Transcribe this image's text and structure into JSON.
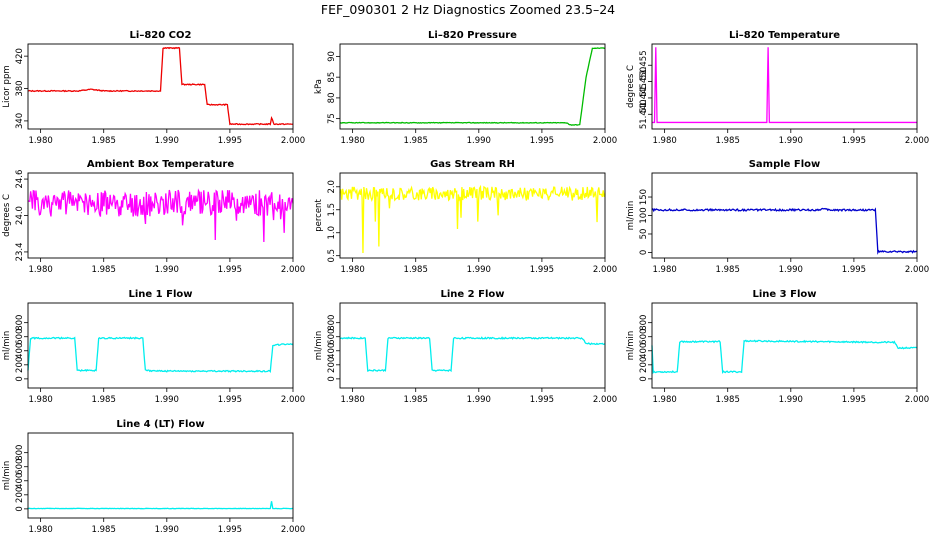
{
  "title": "FEF_090301  2 Hz Diagnostics Zoomed 23.5–24",
  "colors": {
    "red": "#ee0000",
    "green": "#00bb00",
    "magenta": "#ff00ff",
    "yellow": "#ffff00",
    "blue": "#0000cc",
    "cyan": "#00eeee"
  },
  "chart_data": [
    {
      "type": "line",
      "title": "Li–820 CO2",
      "ylabel": "Licor ppm",
      "color": "red",
      "noise": 0.6,
      "xlim": [
        1.979,
        2.0
      ],
      "xticks": [
        1.98,
        1.985,
        1.99,
        1.995,
        2.0
      ],
      "xticklabels": [
        "1.980",
        "1.985",
        "1.990",
        "1.995",
        "2.000"
      ],
      "ylim": [
        330,
        435
      ],
      "yticks": [
        340,
        380,
        420
      ],
      "yticklabels": [
        "340",
        "380",
        "420"
      ],
      "x": [
        1.979,
        1.983,
        1.984,
        1.985,
        1.9895,
        1.9897,
        1.991,
        1.9912,
        1.993,
        1.9932,
        1.9948,
        1.995,
        1.9982,
        1.9983,
        1.9985,
        2.0
      ],
      "y": [
        377,
        377,
        379,
        377,
        377,
        430,
        430,
        385,
        385,
        360,
        360,
        336,
        336,
        344,
        336,
        336
      ]
    },
    {
      "type": "line",
      "title": "Li–820 Pressure",
      "ylabel": "kPa",
      "color": "green",
      "noise": 0.08,
      "xlim": [
        1.979,
        2.0
      ],
      "xticks": [
        1.98,
        1.985,
        1.99,
        1.995,
        2.0
      ],
      "xticklabels": [
        "1.980",
        "1.985",
        "1.990",
        "1.995",
        "2.000"
      ],
      "ylim": [
        72.5,
        93
      ],
      "yticks": [
        75,
        80,
        85,
        90
      ],
      "yticklabels": [
        "75",
        "80",
        "85",
        "90"
      ],
      "x": [
        1.979,
        1.997,
        1.9972,
        1.998,
        1.9985,
        1.999,
        2.0
      ],
      "y": [
        74,
        74,
        73.5,
        73.5,
        85,
        92,
        92
      ]
    },
    {
      "type": "line",
      "title": "Li–820 Temperature",
      "ylabel": "degrees C",
      "color": "magenta",
      "noise": 0,
      "xlim": [
        1.979,
        2.0
      ],
      "xticks": [
        1.98,
        1.985,
        1.99,
        1.995,
        2.0
      ],
      "xticklabels": [
        "1.980",
        "1.985",
        "1.990",
        "1.995",
        "2.000"
      ],
      "ylim": [
        51.4355,
        51.4615
      ],
      "yticks": [
        51.44,
        51.445,
        51.45,
        51.455
      ],
      "yticklabels": [
        "51.440",
        "51.445",
        "51.450",
        "51.455"
      ],
      "x": [
        1.979,
        1.9792,
        1.9793,
        1.9794,
        1.9795,
        1.9881,
        1.9882,
        1.9883,
        1.9884,
        2.0
      ],
      "y": [
        51.4375,
        51.4375,
        51.4605,
        51.4375,
        51.4375,
        51.4375,
        51.4605,
        51.4375,
        51.4375,
        51.4375
      ]
    },
    {
      "type": "line",
      "title": "Ambient Box Temperature",
      "ylabel": "degrees C",
      "color": "magenta",
      "noise": 0.22,
      "xlim": [
        1.979,
        2.0
      ],
      "xticks": [
        1.98,
        1.985,
        1.99,
        1.995,
        2.0
      ],
      "xticklabels": [
        "1.980",
        "1.985",
        "1.990",
        "1.995",
        "2.000"
      ],
      "ylim": [
        23.3,
        24.7
      ],
      "yticks": [
        23.4,
        24.0,
        24.6
      ],
      "yticklabels": [
        "23.4",
        "24.0",
        "24.6"
      ],
      "x": [
        1.979,
        2.0
      ],
      "y": [
        24.2,
        24.2
      ]
    },
    {
      "type": "line",
      "title": "Gas Stream RH",
      "ylabel": "percent",
      "color": "yellow",
      "noise": 0.15,
      "xlim": [
        1.979,
        2.0
      ],
      "xticks": [
        1.98,
        1.985,
        1.99,
        1.995,
        2.0
      ],
      "xticklabels": [
        "1.980",
        "1.985",
        "1.990",
        "1.995",
        "2.000"
      ],
      "ylim": [
        0.45,
        2.3
      ],
      "yticks": [
        0.5,
        1.0,
        1.5,
        2.0
      ],
      "yticklabels": [
        "0.5",
        "1.0",
        "1.5",
        "2.0"
      ],
      "x": [
        1.979,
        2.0
      ],
      "y": [
        1.85,
        1.85
      ]
    },
    {
      "type": "line",
      "title": "Sample Flow",
      "ylabel": "ml/min",
      "color": "blue",
      "noise": 2.5,
      "xlim": [
        1.979,
        2.0
      ],
      "xticks": [
        1.98,
        1.985,
        1.99,
        1.995,
        2.0
      ],
      "xticklabels": [
        "1.980",
        "1.985",
        "1.990",
        "1.995",
        "2.000"
      ],
      "ylim": [
        -15,
        215
      ],
      "yticks": [
        0,
        50,
        100,
        150
      ],
      "yticklabels": [
        "0",
        "50",
        "100",
        "150"
      ],
      "x": [
        1.979,
        1.992,
        1.9925,
        1.993,
        1.9967,
        1.9969,
        2.0
      ],
      "y": [
        115,
        115,
        118,
        115,
        115,
        2,
        2
      ]
    },
    {
      "type": "line",
      "title": "Line 1 Flow",
      "ylabel": "ml/min",
      "color": "cyan",
      "noise": 10,
      "xlim": [
        1.979,
        2.0
      ],
      "xticks": [
        1.98,
        1.985,
        1.99,
        1.995,
        2.0
      ],
      "xticklabels": [
        "1.980",
        "1.985",
        "1.990",
        "1.995",
        "2.000"
      ],
      "ylim": [
        -130,
        1080
      ],
      "yticks": [
        0,
        200,
        400,
        600,
        800
      ],
      "yticklabels": [
        "0",
        "200",
        "400",
        "600",
        "800"
      ],
      "x": [
        1.979,
        1.9792,
        1.9794,
        1.9827,
        1.9829,
        1.9844,
        1.9846,
        1.9881,
        1.9883,
        1.99,
        1.9982,
        1.9984,
        2.0
      ],
      "y": [
        120,
        580,
        580,
        580,
        120,
        120,
        580,
        580,
        120,
        110,
        110,
        480,
        500
      ]
    },
    {
      "type": "line",
      "title": "Line 2 Flow",
      "ylabel": "ml/min",
      "color": "cyan",
      "noise": 10,
      "xlim": [
        1.979,
        2.0
      ],
      "xticks": [
        1.98,
        1.985,
        1.99,
        1.995,
        2.0
      ],
      "xticklabels": [
        "1.980",
        "1.985",
        "1.990",
        "1.995",
        "2.000"
      ],
      "ylim": [
        -130,
        1080
      ],
      "yticks": [
        0,
        200,
        400,
        600,
        800
      ],
      "yticklabels": [
        "0",
        "200",
        "400",
        "600",
        "800"
      ],
      "x": [
        1.979,
        1.981,
        1.9812,
        1.9826,
        1.9828,
        1.9861,
        1.9863,
        1.9878,
        1.988,
        1.9982,
        1.9985,
        2.0
      ],
      "y": [
        580,
        580,
        120,
        120,
        580,
        580,
        120,
        120,
        580,
        580,
        500,
        500
      ]
    },
    {
      "type": "line",
      "title": "Line 3 Flow",
      "ylabel": "ml/min",
      "color": "cyan",
      "noise": 10,
      "xlim": [
        1.979,
        2.0
      ],
      "xticks": [
        1.98,
        1.985,
        1.99,
        1.995,
        2.0
      ],
      "xticklabels": [
        "1.980",
        "1.985",
        "1.990",
        "1.995",
        "2.000"
      ],
      "ylim": [
        -130,
        1080
      ],
      "yticks": [
        0,
        200,
        400,
        600,
        800
      ],
      "yticklabels": [
        "0",
        "200",
        "400",
        "600",
        "800"
      ],
      "x": [
        1.979,
        1.9791,
        1.9793,
        1.981,
        1.9812,
        1.9844,
        1.9846,
        1.9861,
        1.9863,
        1.9982,
        1.9985,
        2.0
      ],
      "y": [
        480,
        100,
        100,
        100,
        530,
        530,
        100,
        100,
        540,
        520,
        440,
        440
      ]
    },
    {
      "type": "line",
      "title": "Line 4 (LT) Flow",
      "ylabel": "ml/min",
      "color": "cyan",
      "noise": 3,
      "xlim": [
        1.979,
        2.0
      ],
      "xticks": [
        1.98,
        1.985,
        1.99,
        1.995,
        2.0
      ],
      "xticklabels": [
        "1.980",
        "1.985",
        "1.990",
        "1.995",
        "2.000"
      ],
      "ylim": [
        -130,
        1080
      ],
      "yticks": [
        0,
        200,
        400,
        600,
        800
      ],
      "yticklabels": [
        "0",
        "200",
        "400",
        "600",
        "800"
      ],
      "x": [
        1.979,
        1.9982,
        1.9983,
        1.9984,
        2.0
      ],
      "y": [
        5,
        5,
        110,
        5,
        5
      ]
    }
  ]
}
